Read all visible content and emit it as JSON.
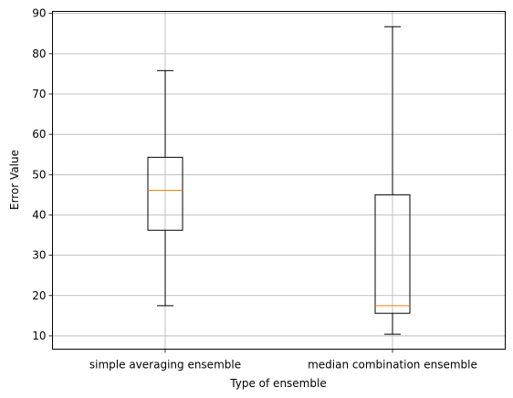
{
  "chart_data": {
    "type": "box",
    "xlabel": "Type of ensemble",
    "ylabel": "Error Value",
    "ylim": [
      6.7,
      90.5
    ],
    "yticks": [
      10,
      20,
      30,
      40,
      50,
      60,
      70,
      80,
      90
    ],
    "grid": true,
    "categories": [
      "simple averaging ensemble",
      "median combination ensemble"
    ],
    "boxes": [
      {
        "whisker_low": 17.5,
        "q1": 36.2,
        "median": 46.1,
        "q3": 54.3,
        "whisker_high": 75.8
      },
      {
        "whisker_low": 10.4,
        "q1": 15.6,
        "median": 17.5,
        "q3": 45.0,
        "whisker_high": 86.7
      }
    ],
    "colors": {
      "box": "#000000",
      "median": "#ff7f0e",
      "grid": "#b0b0b0"
    }
  }
}
